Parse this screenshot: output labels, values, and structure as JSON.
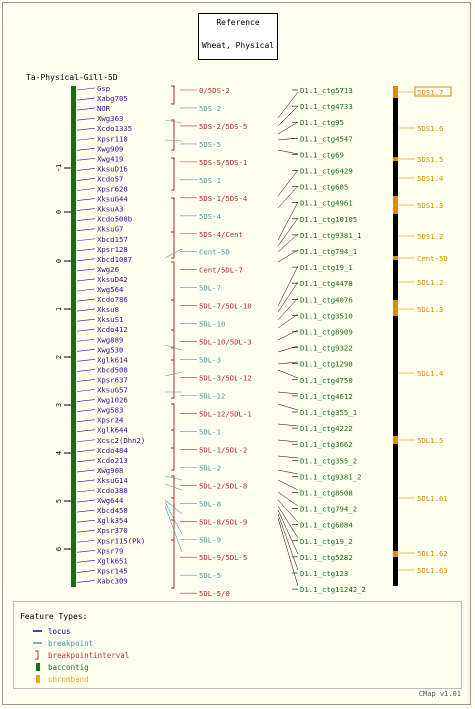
{
  "reference": {
    "title": "Reference",
    "subtitle": "Wheat, Physical"
  },
  "map_title": "Ta-Physical-Gill-5D",
  "axis_ticks": [
    "-1",
    "0",
    "0",
    "1",
    "2",
    "3",
    "4",
    "5",
    "6"
  ],
  "loci": [
    "Gsp",
    "Xabg705",
    "NOR",
    "Xwg363",
    "Xcdo1335",
    "Xpsr118",
    "Xwg909",
    "Xwg419",
    "XksuD16",
    "Xcdo57",
    "Xpsr628",
    "XksuG44",
    "XksuA3",
    "Xcdo508b",
    "XksuG7",
    "Xbcd157",
    "Xpsr128",
    "Xbcd1087",
    "Xwg26",
    "XksuD42",
    "Xwg564",
    "Xcdo786",
    "Xksu8",
    "XksuS1",
    "Xcdo412",
    "Xwg889",
    "Xwg530",
    "Xglk614",
    "Xbcd508",
    "Xpsr637",
    "XksuG57",
    "Xwg1026",
    "Xwg583",
    "Xpsr24",
    "Xglk644",
    "Xcsc2(Dhn2)",
    "Xcdo484",
    "Xcdo213",
    "Xwg908",
    "XksuG14",
    "Xcdo388",
    "Xwg644",
    "Xbcd450",
    "Xglk354",
    "Xpsr370",
    "Xpsr115(Pk)",
    "Xpsr79",
    "Xglk651",
    "Xpsr145",
    "Xabc309"
  ],
  "breakpoints": [
    {
      "label": "0/5DS-2",
      "type": "interval"
    },
    {
      "label": "5DS-2",
      "type": "breakpoint"
    },
    {
      "label": "5DS-2/5DS-5",
      "type": "interval"
    },
    {
      "label": "5DS-5",
      "type": "breakpoint"
    },
    {
      "label": "5DS-5/5DS-1",
      "type": "interval"
    },
    {
      "label": "5DS-1",
      "type": "breakpoint"
    },
    {
      "label": "5DS-1/5DS-4",
      "type": "interval"
    },
    {
      "label": "5DS-4",
      "type": "breakpoint"
    },
    {
      "label": "5DS-4/Cent",
      "type": "interval"
    },
    {
      "label": "Cent-5D",
      "type": "breakpoint"
    },
    {
      "label": "Cent/5DL-7",
      "type": "interval"
    },
    {
      "label": "5DL-7",
      "type": "breakpoint"
    },
    {
      "label": "5DL-7/5DL-10",
      "type": "interval"
    },
    {
      "label": "5DL-10",
      "type": "breakpoint"
    },
    {
      "label": "5DL-10/5DL-3",
      "type": "interval"
    },
    {
      "label": "5DL-3",
      "type": "breakpoint"
    },
    {
      "label": "5DL-3/5DL-12",
      "type": "interval"
    },
    {
      "label": "5DL-12",
      "type": "breakpoint"
    },
    {
      "label": "5DL-12/5DL-1",
      "type": "interval"
    },
    {
      "label": "5DL-1",
      "type": "breakpoint"
    },
    {
      "label": "5DL-1/5DL-2",
      "type": "interval"
    },
    {
      "label": "5DL-2",
      "type": "breakpoint"
    },
    {
      "label": "5DL-2/5DL-8",
      "type": "interval"
    },
    {
      "label": "5DL-8",
      "type": "breakpoint"
    },
    {
      "label": "5DL-8/5DL-9",
      "type": "interval"
    },
    {
      "label": "5DL-9",
      "type": "breakpoint"
    },
    {
      "label": "5DL-9/5DL-5",
      "type": "interval"
    },
    {
      "label": "5DL-5",
      "type": "breakpoint"
    },
    {
      "label": "5DL-5/0",
      "type": "interval"
    }
  ],
  "contigs": [
    "D1.1_ctg5713",
    "D1.1_ctg4733",
    "D1.1_ctg95",
    "D1.1_ctg4547",
    "D1.1_ctg69",
    "D1.1_ctg6429",
    "D1.1_ctg605",
    "D1.1_ctg4961",
    "D1.1_ctg10105",
    "D1.1_ctg9381_1",
    "D1.1_ctg794_1",
    "D1.1_ctg19_1",
    "D1.1_ctg4478",
    "D1.1_ctg4076",
    "D1.1_ctg3510",
    "D1.1_ctg8909",
    "D1.1_ctg9322",
    "D1.1_ctg1298",
    "D1.1_ctg4750",
    "D1.1_ctg4612",
    "D1.1_ctg355_1",
    "D1.1_ctg4222",
    "D1.1_ctg3662",
    "D1.1_ctg355_2",
    "D1.1_ctg9381_2",
    "D1.1_ctg8508",
    "D1.1_ctg794_2",
    "D1.1_ctg6084",
    "D1.1_ctg19_2",
    "D1.1_ctg5282",
    "D1.1_ctg123",
    "D1.1_ctg11242_2"
  ],
  "chrombands": [
    "5DS1.7",
    "5DS1.6",
    "5DS1.5",
    "5DS1.4",
    "5DS1.3",
    "5DS1.2",
    "Cent-5D",
    "5DL1.2",
    "5DL1.3",
    "5DL1.4",
    "5DL1.5",
    "5DL1.61",
    "5DL1.62",
    "5DL1.63"
  ],
  "legend": {
    "title": "Feature Types:",
    "items": [
      {
        "label": "locus",
        "symbol": "line",
        "color": "#0000b0"
      },
      {
        "label": "breakpoint",
        "symbol": "line",
        "color": "#4a9a9a"
      },
      {
        "label": "breakpointinterval",
        "symbol": "bracket",
        "color": "#cc3333"
      },
      {
        "label": "baccontig",
        "symbol": "bar",
        "color": "#1a6b1a"
      },
      {
        "label": "chromband",
        "symbol": "bar",
        "color": "#f5a623"
      }
    ]
  },
  "credit": "CMap v1.01",
  "colors": {
    "locus": "#3b0a8a",
    "breakpoint": "#4a9a9a",
    "interval": "#b22a2a",
    "contig": "#1a6b1a",
    "chromband": "#e08a00",
    "map_bar": "#1a6b1a"
  }
}
